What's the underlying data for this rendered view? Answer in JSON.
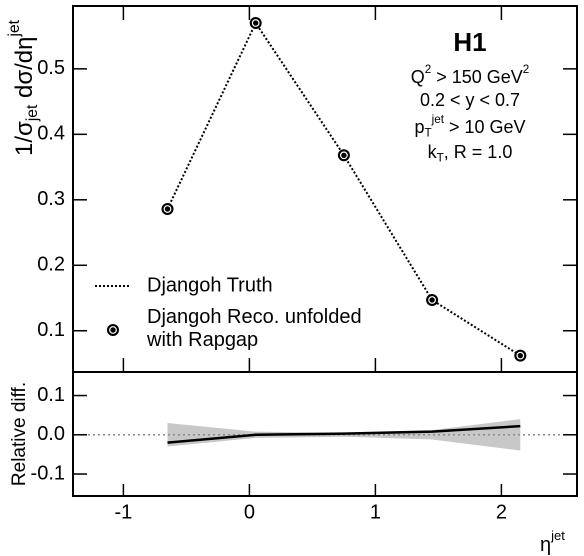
{
  "chart_data": [
    {
      "type": "line",
      "ylabel": [
        {
          "text": "1/σ"
        },
        {
          "text": "jet",
          "pos": "sub"
        },
        {
          "text": " dσ/dη"
        },
        {
          "text": "jet",
          "pos": "sup"
        }
      ],
      "annotations": [
        [
          {
            "text": "H1"
          }
        ],
        [
          {
            "text": "Q"
          },
          {
            "text": "2",
            "pos": "sup"
          },
          {
            "text": " > 150 GeV"
          },
          {
            "text": "2",
            "pos": "sup"
          }
        ],
        [
          {
            "text": "0.2 < y < 0.7"
          }
        ],
        [
          {
            "text": "p"
          },
          {
            "text": "T",
            "pos": "sub"
          },
          {
            "text": "jet",
            "pos": "sup"
          },
          {
            "text": " > 10 GeV"
          }
        ],
        [
          {
            "text": "k"
          },
          {
            "text": "T",
            "pos": "sub"
          },
          {
            "text": ", R = 1.0"
          }
        ]
      ],
      "x": [
        -0.65,
        0.05,
        0.75,
        1.45,
        2.15
      ],
      "series": [
        {
          "name": "Djangoh Truth",
          "color": "#000000",
          "style": "dotted",
          "values": [
            0.286,
            0.57,
            0.368,
            0.147,
            0.062
          ]
        },
        {
          "name": "Djangoh Reco. unfolded with Rapgap",
          "color": "#000000",
          "style": "marker",
          "values": [
            0.286,
            0.57,
            0.368,
            0.147,
            0.062
          ]
        }
      ],
      "xlim": [
        -1.4,
        2.6
      ],
      "ylim": [
        0.037,
        0.596
      ],
      "yticks": [
        0.1,
        0.2,
        0.3,
        0.4,
        0.5
      ]
    },
    {
      "type": "line",
      "ylabel": [
        {
          "text": "Relative diff."
        }
      ],
      "xlabel": [
        {
          "text": "η"
        },
        {
          "text": "jet",
          "pos": "sup"
        }
      ],
      "x": [
        -0.65,
        0.05,
        0.75,
        1.45,
        2.15
      ],
      "series": [
        {
          "color": "#000000",
          "values": [
            -0.02,
            0.0,
            0.003,
            0.008,
            0.022
          ]
        }
      ],
      "uncertainty": [
        0.03,
        0.008,
        0.005,
        0.012,
        0.04
      ],
      "band_color": "#c8c8c8",
      "xlim": [
        -1.4,
        2.6
      ],
      "xticks": [
        -1,
        0,
        1,
        2
      ],
      "ylim": [
        -0.156,
        0.16
      ],
      "yticks": [
        0.1,
        {
          "value": 0,
          "label": "0.0"
        },
        -0.1
      ]
    }
  ]
}
